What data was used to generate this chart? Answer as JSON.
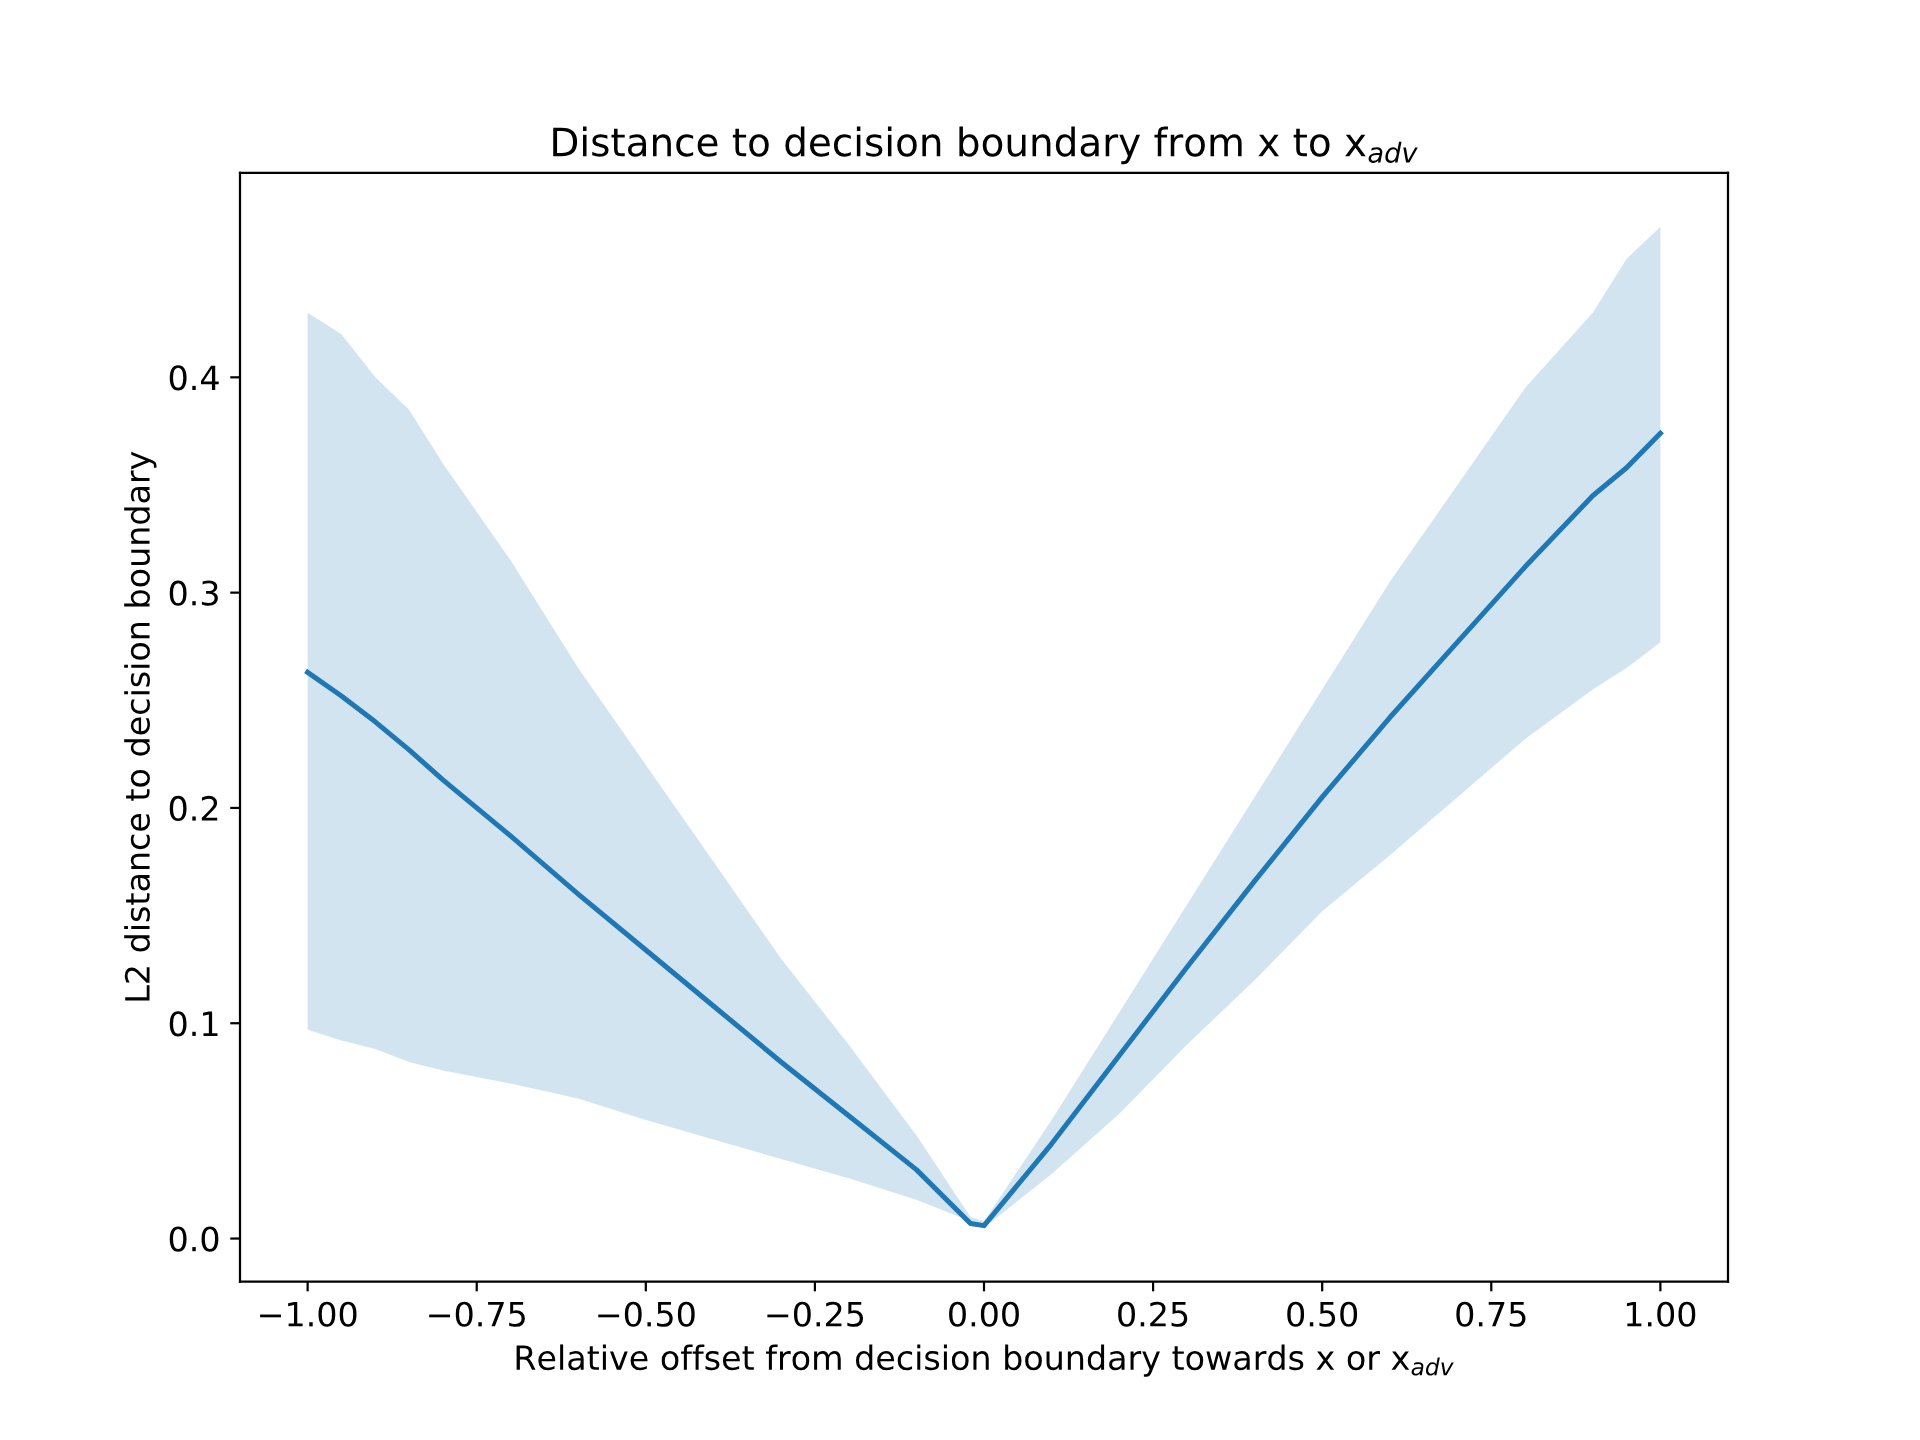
{
  "chart_data": {
    "type": "line",
    "title": "Distance to decision boundary from x to x$_{adv}$",
    "xlabel": "Relative offset from decision boundary towards x or x$_{adv}$",
    "ylabel": "L2 distance to decision boundary",
    "x": [
      -1,
      -0.95,
      -0.9,
      -0.85,
      -0.8,
      -0.7,
      -0.6,
      -0.5,
      -0.4,
      -0.3,
      -0.2,
      -0.1,
      -0.02,
      0,
      0.1,
      0.2,
      0.3,
      0.4,
      0.5,
      0.6,
      0.7,
      0.8,
      0.9,
      0.95,
      1
    ],
    "series": [
      {
        "color": "#1f77b4",
        "values": [
          0.263,
          0.252,
          0.24,
          0.227,
          0.213,
          0.187,
          0.16,
          0.134,
          0.108,
          0.082,
          0.057,
          0.032,
          0.007,
          0.006,
          0.044,
          0.085,
          0.126,
          0.166,
          0.205,
          0.242,
          0.277,
          0.312,
          0.345,
          0.358,
          0.374
        ],
        "upper": [
          0.43,
          0.42,
          0.4,
          0.385,
          0.36,
          0.315,
          0.265,
          0.22,
          0.175,
          0.13,
          0.09,
          0.048,
          0.01,
          0.008,
          0.055,
          0.105,
          0.155,
          0.205,
          0.255,
          0.305,
          0.35,
          0.395,
          0.43,
          0.455,
          0.47
        ],
        "lower": [
          0.097,
          0.092,
          0.088,
          0.082,
          0.078,
          0.072,
          0.065,
          0.055,
          0.046,
          0.037,
          0.028,
          0.018,
          0.008,
          0.005,
          0.03,
          0.058,
          0.09,
          0.12,
          0.152,
          0.178,
          0.205,
          0.232,
          0.255,
          0.265,
          0.277
        ]
      }
    ],
    "xlim": [
      -1.1,
      1.1
    ],
    "ylim": [
      -0.02,
      0.495
    ],
    "xticks": [
      {
        "value": -1,
        "label": "−1.00"
      },
      {
        "value": -0.75,
        "label": "−0.75"
      },
      {
        "value": -0.5,
        "label": "−0.50"
      },
      {
        "value": -0.25,
        "label": "−0.25"
      },
      {
        "value": 0,
        "label": "0.00"
      },
      {
        "value": 0.25,
        "label": "0.25"
      },
      {
        "value": 0.5,
        "label": "0.50"
      },
      {
        "value": 0.75,
        "label": "0.75"
      },
      {
        "value": 1,
        "label": "1.00"
      }
    ],
    "yticks": [
      {
        "value": 0,
        "label": "0.0"
      },
      0.1,
      0.2,
      0.3,
      0.4
    ],
    "grid": false,
    "marker": "none",
    "line_style": "solid"
  }
}
